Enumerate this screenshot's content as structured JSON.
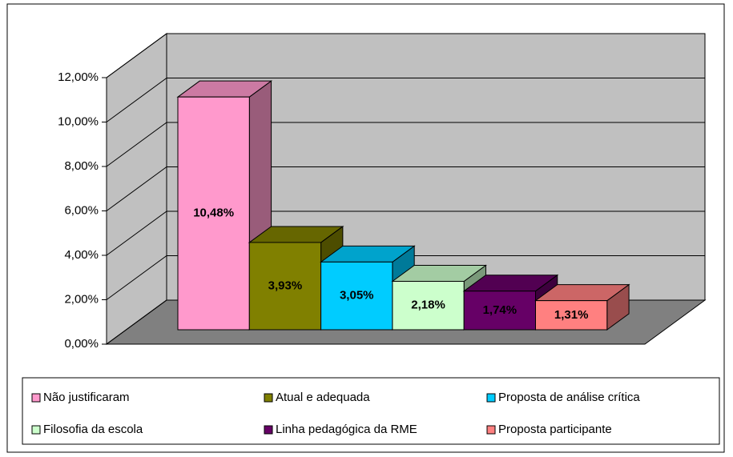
{
  "chart_data": {
    "type": "bar3d",
    "series": [
      {
        "name": "Não justificaram",
        "color": "#ff99cc",
        "values": [
          10.48
        ],
        "value_labels": [
          "10,48%"
        ]
      },
      {
        "name": "Atual e adequada",
        "color": "#808000",
        "values": [
          3.93
        ],
        "value_labels": [
          "3,93%"
        ]
      },
      {
        "name": "Proposta de análise crítica",
        "color": "#00ccff",
        "values": [
          3.05
        ],
        "value_labels": [
          "3,05%"
        ]
      },
      {
        "name": "Filosofia da escola",
        "color": "#ccffcc",
        "values": [
          2.18
        ],
        "value_labels": [
          "2,18%"
        ]
      },
      {
        "name": "Linha pedagógica da RME",
        "color": "#660066",
        "values": [
          1.74
        ],
        "value_labels": [
          "1,74%"
        ]
      },
      {
        "name": "Proposta participante",
        "color": "#ff8080",
        "values": [
          1.31
        ],
        "value_labels": [
          "1,31%"
        ]
      }
    ],
    "ylim": [
      0,
      12
    ],
    "yticks": [
      {
        "value": 0,
        "label": "0,00%"
      },
      {
        "value": 2,
        "label": "2,00%"
      },
      {
        "value": 4,
        "label": "4,00%"
      },
      {
        "value": 6,
        "label": "6,00%"
      },
      {
        "value": 8,
        "label": "8,00%"
      },
      {
        "value": 10,
        "label": "10,00%"
      },
      {
        "value": 12,
        "label": "12,00%"
      }
    ],
    "grid": true,
    "legend": "bottom"
  }
}
